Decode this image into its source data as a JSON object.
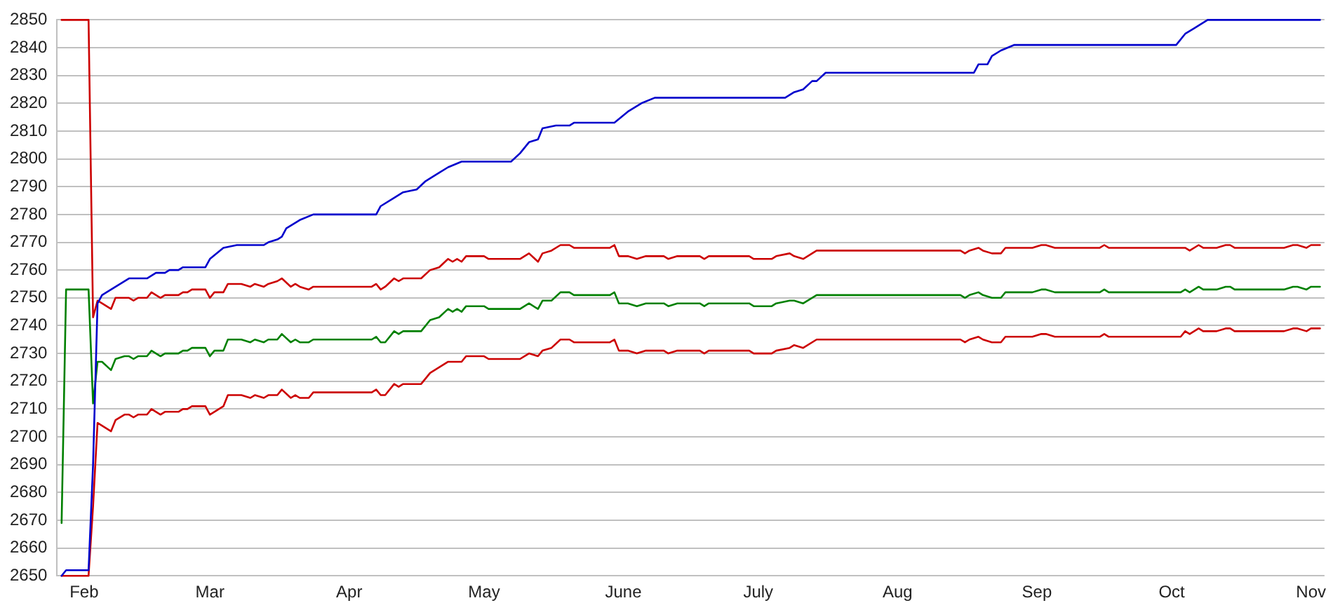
{
  "chart_data": {
    "type": "line",
    "xlim": [
      "--01-26",
      "--11-04"
    ],
    "xticks": [
      {
        "value": "--02-01",
        "label": "Feb"
      },
      {
        "value": "--03-01",
        "label": "Mar"
      },
      {
        "value": "--04-01",
        "label": "Apr"
      },
      {
        "value": "--05-01",
        "label": "May"
      },
      {
        "value": "--06-01",
        "label": "June"
      },
      {
        "value": "--07-01",
        "label": "July"
      },
      {
        "value": "--08-01",
        "label": "Aug"
      },
      {
        "value": "--09-01",
        "label": "Sep"
      },
      {
        "value": "--10-01",
        "label": "Oct"
      },
      {
        "value": "--11-01",
        "label": "Nov"
      }
    ],
    "ylim": [
      2650,
      2850
    ],
    "yticks": [
      2650,
      2660,
      2670,
      2680,
      2690,
      2700,
      2710,
      2720,
      2730,
      2740,
      2750,
      2760,
      2770,
      2780,
      2790,
      2800,
      2810,
      2820,
      2830,
      2840,
      2850
    ],
    "grid": "y",
    "series": [
      {
        "color": "#0000cc",
        "x": [
          "--01-27",
          "--01-28",
          "--02-02",
          "--02-03",
          "--02-04",
          "--02-05",
          "--02-06",
          "--02-11",
          "--02-15",
          "--02-17",
          "--02-19",
          "--02-20",
          "--02-22",
          "--02-23",
          "--02-28",
          "--03-01",
          "--03-04",
          "--03-07",
          "--03-13",
          "--03-14",
          "--03-16",
          "--03-17",
          "--03-18",
          "--03-21",
          "--03-24",
          "--04-07",
          "--04-08",
          "--04-11",
          "--04-13",
          "--04-16",
          "--04-18",
          "--04-21",
          "--04-23",
          "--04-26",
          "--05-07",
          "--05-09",
          "--05-11",
          "--05-13",
          "--05-14",
          "--05-17",
          "--05-20",
          "--05-21",
          "--05-30",
          "--06-02",
          "--06-05",
          "--06-08",
          "--07-07",
          "--07-09",
          "--07-11",
          "--07-13",
          "--07-14",
          "--07-16",
          "--08-18",
          "--08-19",
          "--08-21",
          "--08-22",
          "--08-24",
          "--08-27",
          "--10-02",
          "--10-04",
          "--10-06",
          "--10-09",
          "--11-03"
        ],
        "values": [
          2650,
          2652,
          2652,
          2690,
          2748,
          2751,
          2752,
          2757,
          2757,
          2759,
          2759,
          2760,
          2760,
          2761,
          2761,
          2764,
          2768,
          2769,
          2769,
          2770,
          2771,
          2772,
          2775,
          2778,
          2780,
          2780,
          2783,
          2786,
          2788,
          2789,
          2792,
          2795,
          2797,
          2799,
          2799,
          2802,
          2806,
          2807,
          2811,
          2812,
          2812,
          2813,
          2813,
          2817,
          2820,
          2822,
          2822,
          2824,
          2825,
          2828,
          2828,
          2831,
          2831,
          2834,
          2834,
          2837,
          2839,
          2841,
          2841,
          2845,
          2847,
          2850,
          2850
        ]
      },
      {
        "color": "#cc0000",
        "x": [
          "--01-27",
          "--01-28",
          "--02-02",
          "--02-03",
          "--02-04",
          "--02-05",
          "--02-07",
          "--02-08",
          "--02-10",
          "--02-11",
          "--02-12",
          "--02-13",
          "--02-15",
          "--02-16",
          "--02-18",
          "--02-19",
          "--02-22",
          "--02-23",
          "--02-24",
          "--02-25",
          "--02-28",
          "--03-01",
          "--03-02",
          "--03-04",
          "--03-05",
          "--03-08",
          "--03-10",
          "--03-11",
          "--03-13",
          "--03-14",
          "--03-16",
          "--03-17",
          "--03-19",
          "--03-20",
          "--03-21",
          "--03-23",
          "--03-24",
          "--04-06",
          "--04-07",
          "--04-08",
          "--04-09",
          "--04-11",
          "--04-12",
          "--04-13",
          "--04-17",
          "--04-19",
          "--04-21",
          "--04-23",
          "--04-24",
          "--04-25",
          "--04-26",
          "--04-27",
          "--05-01",
          "--05-02",
          "--05-09",
          "--05-11",
          "--05-13",
          "--05-14",
          "--05-16",
          "--05-18",
          "--05-20",
          "--05-21",
          "--05-29",
          "--05-30",
          "--05-31",
          "--06-02",
          "--06-04",
          "--06-06",
          "--06-10",
          "--06-11",
          "--06-13",
          "--06-18",
          "--06-19",
          "--06-20",
          "--06-29",
          "--06-30",
          "--07-04",
          "--07-05",
          "--07-08",
          "--07-09",
          "--07-11",
          "--07-14",
          "--08-15",
          "--08-16",
          "--08-17",
          "--08-19",
          "--08-20",
          "--08-22",
          "--08-24",
          "--08-25",
          "--08-31",
          "--09-02",
          "--09-03",
          "--09-05",
          "--09-15",
          "--09-16",
          "--09-17",
          "--10-03",
          "--10-04",
          "--10-05",
          "--10-07",
          "--10-08",
          "--10-11",
          "--10-13",
          "--10-14",
          "--10-15",
          "--10-26",
          "--10-28",
          "--10-29",
          "--10-31",
          "--11-01",
          "--11-03"
        ],
        "values": [
          2850,
          2850,
          2850,
          2743,
          2749,
          2748,
          2746,
          2750,
          2750,
          2750,
          2749,
          2750,
          2750,
          2752,
          2750,
          2751,
          2751,
          2752,
          2752,
          2753,
          2753,
          2750,
          2752,
          2752,
          2755,
          2755,
          2754,
          2755,
          2754,
          2755,
          2756,
          2757,
          2754,
          2755,
          2754,
          2753,
          2754,
          2754,
          2755,
          2753,
          2754,
          2757,
          2756,
          2757,
          2757,
          2760,
          2761,
          2764,
          2763,
          2764,
          2763,
          2765,
          2765,
          2764,
          2764,
          2766,
          2763,
          2766,
          2767,
          2769,
          2769,
          2768,
          2768,
          2769,
          2765,
          2765,
          2764,
          2765,
          2765,
          2764,
          2765,
          2765,
          2764,
          2765,
          2765,
          2764,
          2764,
          2765,
          2766,
          2765,
          2764,
          2767,
          2767,
          2766,
          2767,
          2768,
          2767,
          2766,
          2766,
          2768,
          2768,
          2769,
          2769,
          2768,
          2768,
          2769,
          2768,
          2768,
          2768,
          2767,
          2769,
          2768,
          2768,
          2769,
          2769,
          2768,
          2768,
          2769,
          2769,
          2768,
          2769,
          2769
        ]
      },
      {
        "color": "#008000",
        "x": [
          "--01-27",
          "--01-28",
          "--02-02",
          "--02-03",
          "--02-04",
          "--02-05",
          "--02-07",
          "--02-08",
          "--02-10",
          "--02-11",
          "--02-12",
          "--02-13",
          "--02-15",
          "--02-16",
          "--02-18",
          "--02-19",
          "--02-22",
          "--02-23",
          "--02-24",
          "--02-25",
          "--02-28",
          "--03-01",
          "--03-02",
          "--03-04",
          "--03-05",
          "--03-08",
          "--03-10",
          "--03-11",
          "--03-13",
          "--03-14",
          "--03-16",
          "--03-17",
          "--03-19",
          "--03-20",
          "--03-21",
          "--03-23",
          "--03-24",
          "--04-06",
          "--04-07",
          "--04-08",
          "--04-09",
          "--04-11",
          "--04-12",
          "--04-13",
          "--04-17",
          "--04-19",
          "--04-21",
          "--04-23",
          "--04-24",
          "--04-25",
          "--04-26",
          "--04-27",
          "--05-01",
          "--05-02",
          "--05-09",
          "--05-11",
          "--05-13",
          "--05-14",
          "--05-16",
          "--05-18",
          "--05-20",
          "--05-21",
          "--05-29",
          "--05-30",
          "--05-31",
          "--06-02",
          "--06-04",
          "--06-06",
          "--06-10",
          "--06-11",
          "--06-13",
          "--06-18",
          "--06-19",
          "--06-20",
          "--06-29",
          "--06-30",
          "--07-04",
          "--07-05",
          "--07-08",
          "--07-09",
          "--07-11",
          "--07-14",
          "--08-15",
          "--08-16",
          "--08-17",
          "--08-19",
          "--08-20",
          "--08-22",
          "--08-24",
          "--08-25",
          "--08-31",
          "--09-02",
          "--09-03",
          "--09-05",
          "--09-15",
          "--09-16",
          "--09-17",
          "--10-03",
          "--10-04",
          "--10-05",
          "--10-07",
          "--10-08",
          "--10-11",
          "--10-13",
          "--10-14",
          "--10-15",
          "--10-26",
          "--10-28",
          "--10-29",
          "--10-31",
          "--11-01",
          "--11-03"
        ],
        "values": [
          2669,
          2753,
          2753,
          2712,
          2727,
          2727,
          2724,
          2728,
          2729,
          2729,
          2728,
          2729,
          2729,
          2731,
          2729,
          2730,
          2730,
          2731,
          2731,
          2732,
          2732,
          2729,
          2731,
          2731,
          2735,
          2735,
          2734,
          2735,
          2734,
          2735,
          2735,
          2737,
          2734,
          2735,
          2734,
          2734,
          2735,
          2735,
          2736,
          2734,
          2734,
          2738,
          2737,
          2738,
          2738,
          2742,
          2743,
          2746,
          2745,
          2746,
          2745,
          2747,
          2747,
          2746,
          2746,
          2748,
          2746,
          2749,
          2749,
          2752,
          2752,
          2751,
          2751,
          2752,
          2748,
          2748,
          2747,
          2748,
          2748,
          2747,
          2748,
          2748,
          2747,
          2748,
          2748,
          2747,
          2747,
          2748,
          2749,
          2749,
          2748,
          2751,
          2751,
          2750,
          2751,
          2752,
          2751,
          2750,
          2750,
          2752,
          2752,
          2753,
          2753,
          2752,
          2752,
          2753,
          2752,
          2752,
          2753,
          2752,
          2754,
          2753,
          2753,
          2754,
          2754,
          2753,
          2753,
          2754,
          2754,
          2753,
          2754,
          2754
        ]
      },
      {
        "color": "#cc0000",
        "x": [
          "--01-27",
          "--01-28",
          "--02-02",
          "--02-03",
          "--02-04",
          "--02-05",
          "--02-07",
          "--02-08",
          "--02-10",
          "--02-11",
          "--02-12",
          "--02-13",
          "--02-15",
          "--02-16",
          "--02-18",
          "--02-19",
          "--02-22",
          "--02-23",
          "--02-24",
          "--02-25",
          "--02-28",
          "--03-01",
          "--03-02",
          "--03-04",
          "--03-05",
          "--03-08",
          "--03-10",
          "--03-11",
          "--03-13",
          "--03-14",
          "--03-16",
          "--03-17",
          "--03-19",
          "--03-20",
          "--03-21",
          "--03-23",
          "--03-24",
          "--04-06",
          "--04-07",
          "--04-08",
          "--04-09",
          "--04-11",
          "--04-12",
          "--04-13",
          "--04-17",
          "--04-19",
          "--04-21",
          "--04-23",
          "--04-24",
          "--04-25",
          "--04-26",
          "--04-27",
          "--05-01",
          "--05-02",
          "--05-09",
          "--05-11",
          "--05-13",
          "--05-14",
          "--05-16",
          "--05-18",
          "--05-20",
          "--05-21",
          "--05-29",
          "--05-30",
          "--05-31",
          "--06-02",
          "--06-04",
          "--06-06",
          "--06-10",
          "--06-11",
          "--06-13",
          "--06-18",
          "--06-19",
          "--06-20",
          "--06-29",
          "--06-30",
          "--07-04",
          "--07-05",
          "--07-08",
          "--07-09",
          "--07-11",
          "--07-14",
          "--08-15",
          "--08-16",
          "--08-17",
          "--08-19",
          "--08-20",
          "--08-22",
          "--08-24",
          "--08-25",
          "--08-31",
          "--09-02",
          "--09-03",
          "--09-05",
          "--09-15",
          "--09-16",
          "--09-17",
          "--10-03",
          "--10-04",
          "--10-05",
          "--10-07",
          "--10-08",
          "--10-11",
          "--10-13",
          "--10-14",
          "--10-15",
          "--10-26",
          "--10-28",
          "--10-29",
          "--10-31",
          "--11-01",
          "--11-03"
        ],
        "values": [
          2650,
          2650,
          2650,
          2675,
          2705,
          2704,
          2702,
          2706,
          2708,
          2708,
          2707,
          2708,
          2708,
          2710,
          2708,
          2709,
          2709,
          2710,
          2710,
          2711,
          2711,
          2708,
          2709,
          2711,
          2715,
          2715,
          2714,
          2715,
          2714,
          2715,
          2715,
          2717,
          2714,
          2715,
          2714,
          2714,
          2716,
          2716,
          2717,
          2715,
          2715,
          2719,
          2718,
          2719,
          2719,
          2723,
          2725,
          2727,
          2727,
          2727,
          2727,
          2729,
          2729,
          2728,
          2728,
          2730,
          2729,
          2731,
          2732,
          2735,
          2735,
          2734,
          2734,
          2735,
          2731,
          2731,
          2730,
          2731,
          2731,
          2730,
          2731,
          2731,
          2730,
          2731,
          2731,
          2730,
          2730,
          2731,
          2732,
          2733,
          2732,
          2735,
          2735,
          2734,
          2735,
          2736,
          2735,
          2734,
          2734,
          2736,
          2736,
          2737,
          2737,
          2736,
          2736,
          2737,
          2736,
          2736,
          2738,
          2737,
          2739,
          2738,
          2738,
          2739,
          2739,
          2738,
          2738,
          2739,
          2739,
          2738,
          2739,
          2739
        ]
      }
    ]
  }
}
